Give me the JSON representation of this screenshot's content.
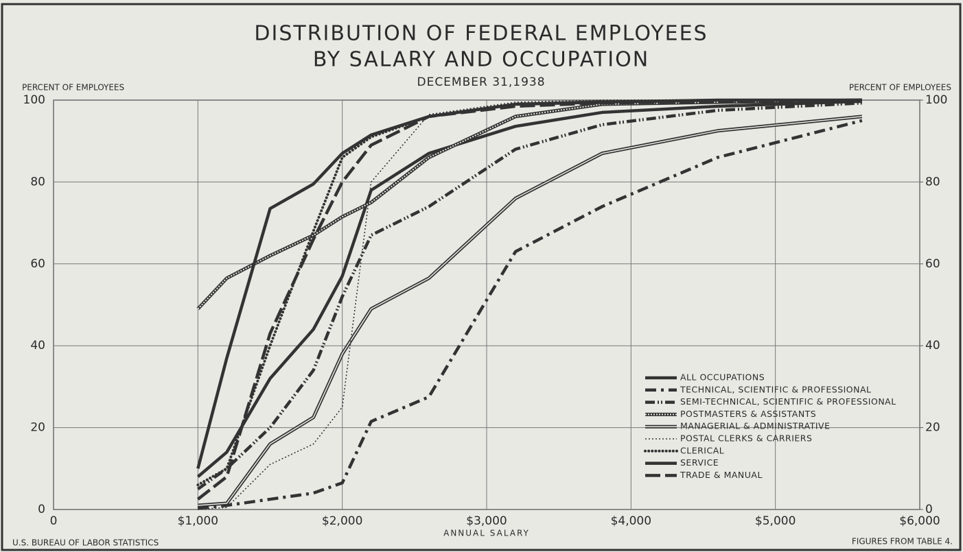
{
  "chart_data": {
    "type": "line",
    "title": [
      "DISTRIBUTION OF FEDERAL EMPLOYEES",
      "BY SALARY AND OCCUPATION"
    ],
    "subtitle": "DECEMBER 31,1938",
    "y_label": "PERCENT OF EMPLOYEES",
    "y2_label": "PERCENT OF EMPLOYEES",
    "x_label": "ANNUAL SALARY",
    "source": "U.S. BUREAU OF LABOR STATISTICS",
    "note": "FIGURES FROM TABLE 4.",
    "x": [
      1000,
      1200,
      1500,
      1800,
      2000,
      2200,
      2600,
      3200,
      3800,
      4600,
      5600
    ],
    "xlim": [
      0,
      6000
    ],
    "xticks": [
      0,
      {
        "value": 1000,
        "label": "$1,000"
      },
      {
        "value": 2000,
        "label": "$2,000"
      },
      {
        "value": 3000,
        "label": "$3,000"
      },
      {
        "value": 4000,
        "label": "$4,000"
      },
      {
        "value": 5000,
        "label": "$5,000"
      },
      {
        "value": 6000,
        "label": "$6,000"
      }
    ],
    "ylim": [
      0,
      100
    ],
    "yticks": [
      0,
      20,
      40,
      60,
      80,
      100
    ],
    "y2lim": [
      0,
      100
    ],
    "y2ticks": [
      0,
      20,
      40,
      60,
      80,
      100
    ],
    "grid": true,
    "legend": "lower right",
    "series": [
      {
        "name": "ALL OCCUPATIONS",
        "color": "#333333",
        "style": "solid",
        "values": [
          8,
          14,
          32,
          44,
          57,
          78,
          87,
          93.6,
          97,
          98.5,
          99.7
        ]
      },
      {
        "name": "TECHNICAL, SCIENTIFIC & PROFESSIONAL",
        "color": "#333333",
        "style": "dash-dot",
        "values": [
          0.3,
          1,
          2.5,
          4,
          6.5,
          21.5,
          27.5,
          63,
          74,
          86,
          95
        ]
      },
      {
        "name": "SEMI-TECHNICAL, SCIENTIFIC & PROFESSIONAL",
        "color": "#333333",
        "style": "dash-circle",
        "values": [
          5,
          10,
          20,
          34,
          52,
          67,
          74,
          88,
          94,
          97.5,
          99.3
        ]
      },
      {
        "name": "POSTMASTERS & ASSISTANTS",
        "color": "#333333",
        "style": "hatched",
        "values": [
          49,
          56.5,
          62,
          67,
          71.5,
          75,
          86,
          96,
          99,
          99.5,
          100
        ]
      },
      {
        "name": "MANAGERIAL & ADMINISTRATIVE",
        "color": "#333333",
        "style": "double",
        "values": [
          1,
          1.5,
          16,
          22.5,
          38,
          49,
          56.5,
          76,
          87,
          92.5,
          96
        ]
      },
      {
        "name": "POSTAL CLERKS & CARRIERS",
        "color": "#333333",
        "style": "circles",
        "values": [
          0,
          0.5,
          11,
          16,
          25,
          80,
          96.5,
          99.5,
          100,
          100,
          100
        ]
      },
      {
        "name": "CLERICAL",
        "color": "#333333",
        "style": "dots",
        "values": [
          6,
          10,
          40,
          68,
          86,
          91,
          96,
          99,
          99.7,
          100,
          100
        ]
      },
      {
        "name": "SERVICE",
        "color": "#333333",
        "style": "solid-open",
        "values": [
          10,
          37,
          73.5,
          79.5,
          87,
          91.5,
          96,
          99,
          99.5,
          100,
          100
        ]
      },
      {
        "name": "TRADE & MANUAL",
        "color": "#333333",
        "style": "long-dash",
        "values": [
          2.5,
          8,
          43,
          66,
          80,
          89,
          96,
          98.5,
          99.3,
          99.6,
          100
        ]
      }
    ]
  }
}
